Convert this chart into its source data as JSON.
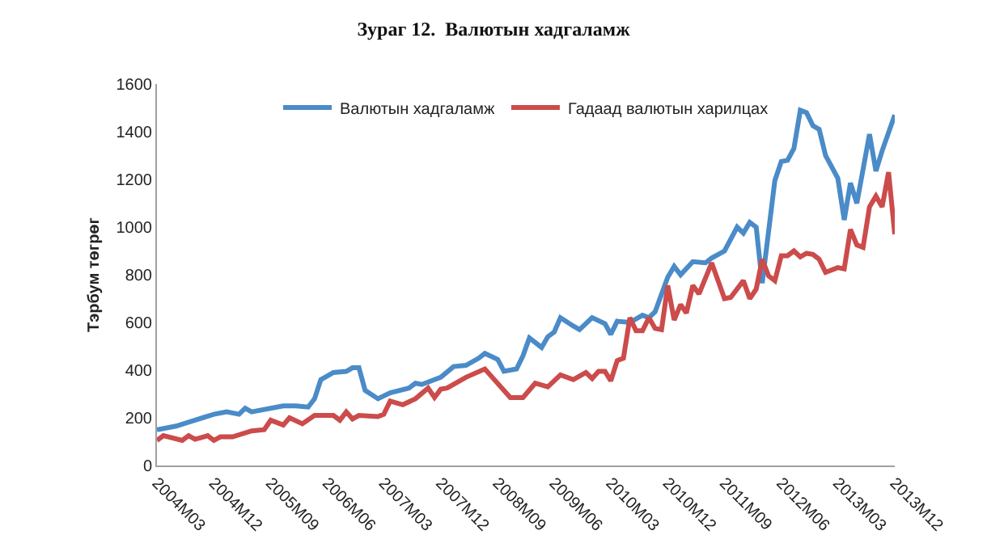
{
  "chart_data": {
    "type": "line",
    "title": "Зураг 12.  Валютын хадгаламж",
    "ylabel": "Тэрбум төгрөг",
    "xlim": [
      "2004-03",
      "2013-12"
    ],
    "xticks": [
      {
        "value": "2004-03",
        "label": "2004M03"
      },
      {
        "value": "2004-12",
        "label": "2004M12"
      },
      {
        "value": "2005-09",
        "label": "2005M09"
      },
      {
        "value": "2006-06",
        "label": "2006M06"
      },
      {
        "value": "2007-03",
        "label": "2007M03"
      },
      {
        "value": "2007-12",
        "label": "2007M12"
      },
      {
        "value": "2008-09",
        "label": "2008M09"
      },
      {
        "value": "2009-06",
        "label": "2009M06"
      },
      {
        "value": "2010-03",
        "label": "2010M03"
      },
      {
        "value": "2010-12",
        "label": "2010M12"
      },
      {
        "value": "2011-09",
        "label": "2011M09"
      },
      {
        "value": "2012-06",
        "label": "2012M06"
      },
      {
        "value": "2013-03",
        "label": "2013M03"
      },
      {
        "value": "2013-12",
        "label": "2013M12"
      }
    ],
    "ylim": [
      0,
      1600
    ],
    "yticks": [
      0,
      200,
      400,
      600,
      800,
      1000,
      1200,
      1400,
      1600
    ],
    "legend": "top",
    "marker": "none",
    "line_style": "solid",
    "series": [
      {
        "name": "Валютын хадгаламж",
        "color": "#4a8bc8",
        "x": [
          "2004-03",
          "2004-06",
          "2004-09",
          "2004-12",
          "2005-02",
          "2005-04",
          "2005-05",
          "2005-06",
          "2005-10",
          "2005-11",
          "2006-01",
          "2006-03",
          "2006-04",
          "2006-05",
          "2006-07",
          "2006-09",
          "2006-10",
          "2006-11",
          "2006-12",
          "2007-02",
          "2007-04",
          "2007-07",
          "2007-08",
          "2007-09",
          "2007-12",
          "2008-02",
          "2008-04",
          "2008-06",
          "2008-07",
          "2008-09",
          "2008-10",
          "2008-12",
          "2009-01",
          "2009-02",
          "2009-04",
          "2009-05",
          "2009-06",
          "2009-07",
          "2009-09",
          "2009-10",
          "2009-12",
          "2010-02",
          "2010-03",
          "2010-04",
          "2010-06",
          "2010-08",
          "2010-09",
          "2010-10",
          "2010-12",
          "2011-01",
          "2011-02",
          "2011-04",
          "2011-06",
          "2011-07",
          "2011-09",
          "2011-11",
          "2011-12",
          "2012-01",
          "2012-02",
          "2012-03",
          "2012-05",
          "2012-06",
          "2012-07",
          "2012-08",
          "2012-09",
          "2012-10",
          "2012-11",
          "2012-12",
          "2013-01",
          "2013-03",
          "2013-04",
          "2013-05",
          "2013-06",
          "2013-08",
          "2013-09",
          "2013-10",
          "2013-12"
        ],
        "values": [
          150,
          165,
          190,
          215,
          225,
          215,
          240,
          225,
          245,
          250,
          250,
          245,
          280,
          360,
          390,
          395,
          410,
          410,
          315,
          280,
          305,
          325,
          345,
          340,
          370,
          415,
          420,
          450,
          470,
          445,
          395,
          405,
          460,
          535,
          495,
          540,
          560,
          620,
          585,
          570,
          620,
          595,
          550,
          605,
          600,
          630,
          620,
          645,
          790,
          835,
          800,
          855,
          850,
          870,
          900,
          1000,
          975,
          1020,
          1000,
          765,
          1195,
          1275,
          1280,
          1330,
          1490,
          1480,
          1425,
          1410,
          1300,
          1205,
          1030,
          1185,
          1100,
          1390,
          1235,
          1320,
          1470
        ]
      },
      {
        "name": "Гадаад валютын харилцах",
        "color": "#cc4b4b",
        "x": [
          "2004-03",
          "2004-04",
          "2004-07",
          "2004-08",
          "2004-09",
          "2004-11",
          "2004-12",
          "2005-01",
          "2005-03",
          "2005-06",
          "2005-08",
          "2005-09",
          "2005-11",
          "2005-12",
          "2006-02",
          "2006-04",
          "2006-07",
          "2006-08",
          "2006-09",
          "2006-10",
          "2006-11",
          "2007-02",
          "2007-03",
          "2007-04",
          "2007-06",
          "2007-08",
          "2007-10",
          "2007-11",
          "2007-12",
          "2008-01",
          "2008-04",
          "2008-07",
          "2008-11",
          "2009-01",
          "2009-03",
          "2009-05",
          "2009-07",
          "2009-09",
          "2009-10",
          "2009-11",
          "2009-12",
          "2010-01",
          "2010-02",
          "2010-03",
          "2010-04",
          "2010-05",
          "2010-06",
          "2010-07",
          "2010-08",
          "2010-09",
          "2010-10",
          "2010-11",
          "2010-12",
          "2011-01",
          "2011-02",
          "2011-03",
          "2011-04",
          "2011-05",
          "2011-07",
          "2011-09",
          "2011-10",
          "2011-12",
          "2012-01",
          "2012-02",
          "2012-03",
          "2012-04",
          "2012-05",
          "2012-06",
          "2012-07",
          "2012-08",
          "2012-09",
          "2012-10",
          "2012-11",
          "2012-12",
          "2013-01",
          "2013-03",
          "2013-04",
          "2013-05",
          "2013-06",
          "2013-07",
          "2013-08",
          "2013-09",
          "2013-10",
          "2013-11",
          "2013-12"
        ],
        "values": [
          105,
          125,
          105,
          125,
          110,
          125,
          105,
          120,
          120,
          145,
          150,
          190,
          170,
          200,
          175,
          210,
          210,
          190,
          225,
          195,
          210,
          205,
          215,
          270,
          255,
          280,
          325,
          285,
          320,
          325,
          370,
          405,
          285,
          285,
          345,
          330,
          380,
          360,
          375,
          390,
          365,
          395,
          395,
          355,
          440,
          450,
          620,
          565,
          565,
          620,
          575,
          570,
          755,
          610,
          675,
          640,
          755,
          720,
          850,
          700,
          705,
          775,
          700,
          740,
          865,
          795,
          775,
          880,
          880,
          900,
          875,
          890,
          885,
          865,
          810,
          830,
          825,
          990,
          925,
          915,
          1085,
          1130,
          1085,
          1230,
          970
        ]
      }
    ]
  }
}
